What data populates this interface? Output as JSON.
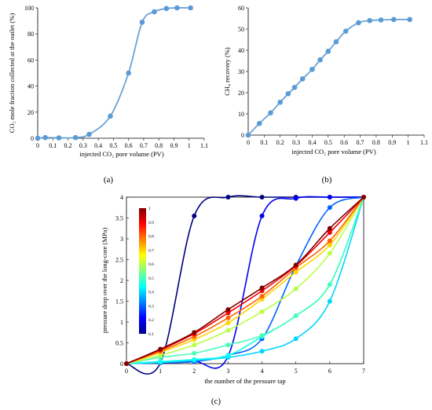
{
  "figure_labels": [
    "(a)",
    "(b)",
    "(c)"
  ],
  "colors": {
    "line": "#6aa2d6",
    "marker": "#5b9bd5",
    "axis": "#000000"
  },
  "chart_data": [
    {
      "type": "line",
      "xlabel": "injected CO₂ pore volume (PV)",
      "ylabel": "CO₂ mole fraction collected at the outlet (%)",
      "xlim": [
        0,
        1.1
      ],
      "ylim": [
        0,
        100
      ],
      "xticks": [
        "0",
        "0.1",
        "0.2",
        "0.3",
        "0.4",
        "0.5",
        "0.6",
        "0.7",
        "0.8",
        "0.9",
        "1",
        "1.1"
      ],
      "yticks": [
        "0",
        "20",
        "40",
        "60",
        "80",
        "100"
      ],
      "x": [
        0.0,
        0.05,
        0.14,
        0.25,
        0.34,
        0.48,
        0.6,
        0.69,
        0.77,
        0.85,
        0.92,
        1.01
      ],
      "y": [
        0.0,
        0.5,
        0.3,
        0.5,
        3,
        17,
        50,
        89,
        97,
        99.5,
        100,
        100
      ]
    },
    {
      "type": "line",
      "xlabel": "injected CO₂ pore volume (PV)",
      "ylabel": "CH₄ recovery (%)",
      "xlim": [
        0,
        1.1
      ],
      "ylim": [
        0,
        60
      ],
      "xticks": [
        "0",
        "0.1",
        "0.2",
        "0.3",
        "0.4",
        "0.5",
        "0.6",
        "0.7",
        "0.8",
        "0.9",
        "1",
        "1.1"
      ],
      "yticks": [
        "0",
        "10",
        "20",
        "30",
        "40",
        "50",
        "60"
      ],
      "x": [
        0.0,
        0.07,
        0.14,
        0.2,
        0.25,
        0.29,
        0.34,
        0.4,
        0.45,
        0.5,
        0.55,
        0.61,
        0.69,
        0.76,
        0.83,
        0.91,
        1.01
      ],
      "y": [
        0.0,
        5.5,
        10.5,
        15.5,
        19.5,
        22.5,
        26.5,
        31,
        35.5,
        39.5,
        44,
        49,
        53,
        54,
        54.3,
        54.5,
        54.5
      ]
    },
    {
      "type": "line",
      "xlabel": "the number of the pressure tap",
      "ylabel": "pressure drop over the long-core (MPa)",
      "xlim": [
        0,
        7
      ],
      "ylim": [
        0,
        4
      ],
      "xticks": [
        "0",
        "1",
        "2",
        "3",
        "4",
        "5",
        "6",
        "7"
      ],
      "yticks": [
        "0",
        "0.5",
        "1",
        "1.5",
        "2",
        "2.5",
        "3",
        "3.5",
        "4"
      ],
      "colorbar_ticks": [
        "0.1",
        "0.2",
        "0.3",
        "0.4",
        "0.5",
        "0.6",
        "0.7",
        "0.8",
        "0.9",
        "1"
      ],
      "colorbar_range": [
        0.1,
        1
      ],
      "x": [
        0,
        1,
        2,
        3,
        4,
        5,
        6,
        7
      ],
      "series": [
        {
          "level": 0.1,
          "values": [
            0,
            0.02,
            3.55,
            4.0,
            4.0,
            4.0,
            4.0,
            4.0
          ]
        },
        {
          "level": 0.2,
          "values": [
            0,
            0.02,
            0.05,
            0.18,
            3.55,
            3.97,
            4.0,
            4.0
          ]
        },
        {
          "level": 0.3,
          "values": [
            0,
            0.02,
            0.05,
            0.2,
            0.6,
            2.35,
            3.75,
            4.0
          ]
        },
        {
          "level": 0.4,
          "values": [
            0,
            0.03,
            0.08,
            0.15,
            0.3,
            0.6,
            1.5,
            4.0
          ]
        },
        {
          "level": 0.45,
          "values": [
            0,
            0.05,
            0.1,
            0.2,
            0.65,
            1.15,
            1.9,
            4.0
          ]
        },
        {
          "level": 0.5,
          "values": [
            0,
            0.15,
            0.25,
            0.45,
            0.68,
            1.15,
            1.9,
            4.0
          ]
        },
        {
          "level": 0.6,
          "values": [
            0,
            0.2,
            0.45,
            0.8,
            1.25,
            1.8,
            2.65,
            4.0
          ]
        },
        {
          "level": 0.7,
          "values": [
            0,
            0.27,
            0.58,
            0.98,
            1.55,
            2.2,
            2.85,
            4.0
          ]
        },
        {
          "level": 0.8,
          "values": [
            0,
            0.3,
            0.65,
            1.1,
            1.62,
            2.3,
            2.95,
            4.0
          ]
        },
        {
          "level": 0.9,
          "values": [
            0,
            0.33,
            0.72,
            1.22,
            1.75,
            2.35,
            3.15,
            4.0
          ]
        },
        {
          "level": 1.0,
          "values": [
            0,
            0.35,
            0.75,
            1.3,
            1.82,
            2.37,
            3.25,
            4.0
          ]
        }
      ]
    }
  ]
}
